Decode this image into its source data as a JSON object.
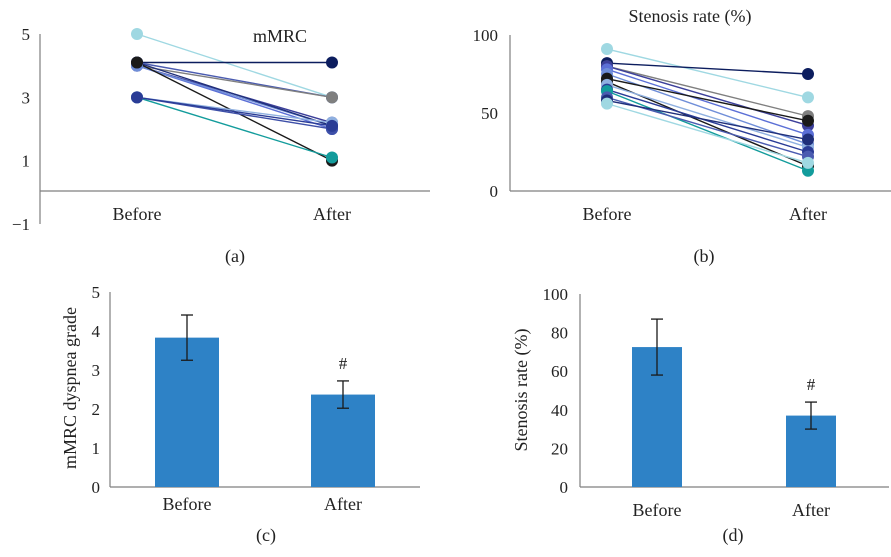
{
  "chart_data": [
    {
      "panel_label": "(a)",
      "type": "line",
      "title": "mMRC",
      "categories": [
        "Before",
        "After"
      ],
      "ylim": [
        -1,
        5
      ],
      "yticks": [
        "5",
        "3",
        "1",
        "−1"
      ],
      "ytick_values": [
        5,
        3,
        1,
        -1
      ],
      "grid": false,
      "series": [
        {
          "values": [
            5.0,
            3.0
          ],
          "color": "#9fd8e2"
        },
        {
          "values": [
            4.1,
            4.1
          ],
          "color": "#0c1d5e"
        },
        {
          "values": [
            4.1,
            3.0
          ],
          "color": "#4a5bb0"
        },
        {
          "values": [
            4.0,
            3.0
          ],
          "color": "#7f7f7f"
        },
        {
          "values": [
            4.0,
            2.2
          ],
          "color": "#3c3f9a"
        },
        {
          "values": [
            4.0,
            2.0
          ],
          "color": "#5b6fd6"
        },
        {
          "values": [
            4.0,
            2.1
          ],
          "color": "#6f8ed8"
        },
        {
          "values": [
            4.1,
            2.1
          ],
          "color": "#1f2f7a"
        },
        {
          "values": [
            4.1,
            1.0
          ],
          "color": "#1a1a1a"
        },
        {
          "values": [
            3.0,
            1.1
          ],
          "color": "#139c9c"
        },
        {
          "values": [
            3.0,
            2.0
          ],
          "color": "#3d4fa8"
        },
        {
          "values": [
            3.0,
            2.2
          ],
          "color": "#8fb0e0"
        },
        {
          "values": [
            3.0,
            2.1
          ],
          "color": "#2a3c96"
        }
      ]
    },
    {
      "panel_label": "(b)",
      "type": "line",
      "title": "Stenosis rate (%)",
      "categories": [
        "Before",
        "After"
      ],
      "ylim": [
        0,
        100
      ],
      "yticks": [
        "100",
        "50",
        "0"
      ],
      "ytick_values": [
        100,
        50,
        0
      ],
      "grid": false,
      "series": [
        {
          "values": [
            91,
            60
          ],
          "color": "#9fd8e2"
        },
        {
          "values": [
            82,
            75
          ],
          "color": "#0c1d5e"
        },
        {
          "values": [
            80,
            48
          ],
          "color": "#7f7f7f"
        },
        {
          "values": [
            80,
            42
          ],
          "color": "#3c3f9a"
        },
        {
          "values": [
            78,
            36
          ],
          "color": "#5b6fd6"
        },
        {
          "values": [
            75,
            30
          ],
          "color": "#6f8ed8"
        },
        {
          "values": [
            72,
            45
          ],
          "color": "#1a1a1a"
        },
        {
          "values": [
            70,
            16
          ],
          "color": "#1a1a1a"
        },
        {
          "values": [
            68,
            28
          ],
          "color": "#8fb0e0"
        },
        {
          "values": [
            65,
            25
          ],
          "color": "#2a3c96"
        },
        {
          "values": [
            64,
            13
          ],
          "color": "#139c9c"
        },
        {
          "values": [
            60,
            22
          ],
          "color": "#4a5bb0"
        },
        {
          "values": [
            58,
            33
          ],
          "color": "#1f2f7a"
        },
        {
          "values": [
            56,
            18
          ],
          "color": "#9fd8e2"
        }
      ]
    },
    {
      "panel_label": "(c)",
      "type": "bar",
      "categories": [
        "Before",
        "After"
      ],
      "values": [
        3.83,
        2.37
      ],
      "error": [
        0.58,
        0.35
      ],
      "annotations": [
        "",
        "#"
      ],
      "ylabel": "mMRC dyspnea grade",
      "ylim": [
        0,
        5
      ],
      "yticks": [
        "5",
        "4",
        "3",
        "2",
        "1",
        "0"
      ],
      "ytick_values": [
        5,
        4,
        3,
        2,
        1,
        0
      ],
      "bar_color": "#2e82c6",
      "grid": false
    },
    {
      "panel_label": "(d)",
      "type": "bar",
      "categories": [
        "Before",
        "After"
      ],
      "values": [
        72.5,
        37.0
      ],
      "error": [
        14.5,
        7.0
      ],
      "annotations": [
        "",
        "#"
      ],
      "ylabel": "Stenosis rate (%)",
      "ylim": [
        0,
        100
      ],
      "yticks": [
        "100",
        "80",
        "60",
        "40",
        "20",
        "0"
      ],
      "ytick_values": [
        100,
        80,
        60,
        40,
        20,
        0
      ],
      "bar_color": "#2e82c6",
      "grid": false
    }
  ]
}
